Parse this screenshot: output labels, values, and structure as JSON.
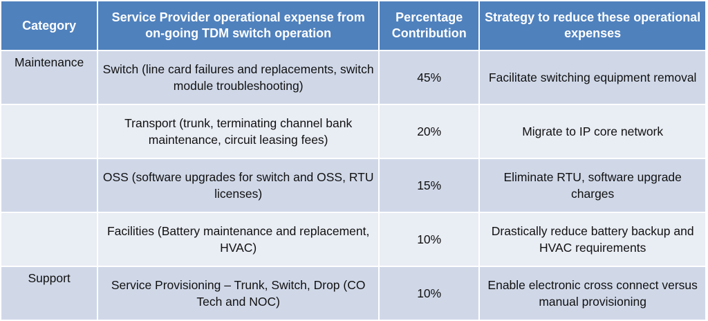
{
  "colors": {
    "header": "#4F81BD",
    "row_odd": "#D0D8E8",
    "row_even": "#E9EDF4"
  },
  "headers": [
    "Category",
    "Service Provider operational expense from on-going TDM switch operation",
    "Percentage Contribution",
    "Strategy to reduce these operational expenses"
  ],
  "rows": [
    {
      "category": "Maintenance",
      "expense": "Switch (line card failures and replacements, switch module troubleshooting)",
      "percent": "45%",
      "strategy": "Facilitate switching equipment removal"
    },
    {
      "category": "",
      "expense": "Transport (trunk, terminating channel bank maintenance, circuit leasing fees)",
      "percent": "20%",
      "strategy": "Migrate to IP core network"
    },
    {
      "category": "",
      "expense": "OSS (software upgrades for switch and OSS, RTU licenses)",
      "percent": "15%",
      "strategy": "Eliminate RTU, software upgrade charges"
    },
    {
      "category": "",
      "expense": "Facilities (Battery maintenance and replacement, HVAC)",
      "percent": "10%",
      "strategy": "Drastically reduce battery backup and HVAC requirements"
    },
    {
      "category": "Support",
      "expense": "Service Provisioning – Trunk, Switch, Drop (CO Tech and NOC)",
      "percent": "10%",
      "strategy": "Enable electronic cross connect versus manual provisioning"
    }
  ]
}
